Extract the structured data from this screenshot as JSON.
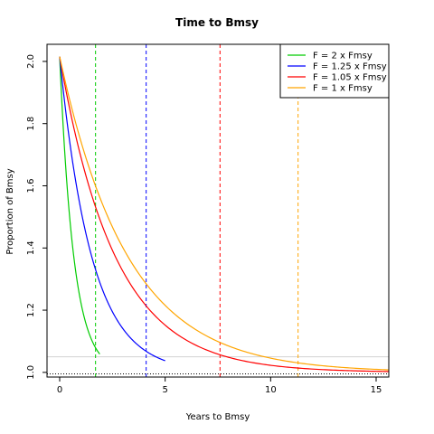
{
  "chart_data": {
    "type": "line",
    "title": "Time to Bmsy",
    "xlabel": "Years to Bmsy",
    "ylabel": "Proportion of Bmsy",
    "xlim": [
      -0.6,
      15.6
    ],
    "ylim": [
      0.985,
      2.055
    ],
    "xticks": [
      0,
      5,
      10,
      15
    ],
    "yticks": [
      1.0,
      1.2,
      1.4,
      1.6,
      1.8,
      2.0
    ],
    "ytick_labels": [
      "1.0",
      "1.2",
      "1.4",
      "1.6",
      "1.8",
      "2.0"
    ],
    "legend_position": "top-right",
    "grid": false,
    "start_value": 2.015,
    "series": [
      {
        "name": "F = 2 x Fmsy",
        "color": "#00cc00",
        "rate": 1.5,
        "x_end": 1.9,
        "vline": 1.7
      },
      {
        "name": "F = 1.25 x Fmsy",
        "color": "#0000ff",
        "rate": 0.66,
        "x_end": 5.0,
        "vline": 4.1
      },
      {
        "name": "F = 1.05 x Fmsy",
        "color": "#ff0000",
        "rate": 0.38,
        "x_end": 15.6,
        "vline": 7.6
      },
      {
        "name": "F = 1 x Fmsy",
        "color": "#ffa500",
        "rate": 0.31,
        "x_end": 15.6,
        "vline": 11.3
      }
    ],
    "reference_lines": {
      "h_solid_y": 1.05,
      "h_solid_color": "#d3d3d3",
      "h_dotted_y": 0.995,
      "h_dotted_color": "#000000"
    }
  }
}
